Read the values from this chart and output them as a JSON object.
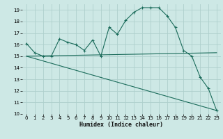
{
  "xlabel": "Humidex (Indice chaleur)",
  "ylabel": "",
  "background_color": "#cde8e5",
  "grid_color": "#aed0cc",
  "line_color": "#1a6b5a",
  "xlim": [
    -0.5,
    23.5
  ],
  "ylim": [
    10,
    19.5
  ],
  "yticks": [
    10,
    11,
    12,
    13,
    14,
    15,
    16,
    17,
    18,
    19
  ],
  "xticks": [
    0,
    1,
    2,
    3,
    4,
    5,
    6,
    7,
    8,
    9,
    10,
    11,
    12,
    13,
    14,
    15,
    16,
    17,
    18,
    19,
    20,
    21,
    22,
    23
  ],
  "series1_x": [
    0,
    1,
    2,
    3,
    4,
    5,
    6,
    7,
    8,
    9,
    10,
    11,
    12,
    13,
    14,
    15,
    16,
    17,
    18,
    19,
    20,
    21,
    22,
    23
  ],
  "series1_y": [
    16.1,
    15.3,
    15.0,
    15.0,
    16.5,
    16.2,
    16.0,
    15.5,
    16.4,
    15.0,
    17.5,
    16.9,
    18.1,
    18.8,
    19.2,
    19.2,
    19.2,
    18.5,
    17.5,
    15.5,
    15.0,
    13.2,
    12.2,
    10.3
  ],
  "series2_x": [
    0,
    23
  ],
  "series2_y": [
    15.0,
    15.3
  ],
  "series3_x": [
    0,
    23
  ],
  "series3_y": [
    15.0,
    10.3
  ],
  "tick_fontsize": 5.0,
  "xlabel_fontsize": 6.0
}
